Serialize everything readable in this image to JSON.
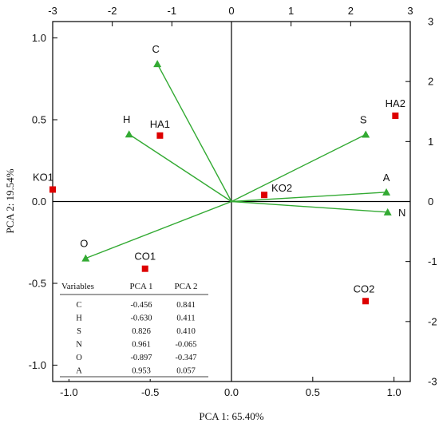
{
  "chart_data": {
    "type": "scatter",
    "xlabel": "PCA 1: 65.40%",
    "ylabel": "PCA 2: 19.54%",
    "xlim": [
      -1.1,
      1.1
    ],
    "ylim": [
      -1.1,
      1.1
    ],
    "secondary_xlim": [
      -3,
      3
    ],
    "secondary_ylim": [
      -3,
      3
    ],
    "x_ticks": [
      "-1.0",
      "-0.5",
      "0.0",
      "0.5",
      "1.0"
    ],
    "y_ticks": [
      "1.0",
      "0.5",
      "0.0",
      "-0.5",
      "-1.0"
    ],
    "top_ticks": [
      "-3",
      "-2",
      "-1",
      "0",
      "1",
      "2",
      "3"
    ],
    "right_ticks": [
      "3",
      "2",
      "1",
      "0",
      "-1",
      "-2",
      "-3"
    ],
    "grid": false,
    "variables": {
      "color": "#33aa33",
      "marker": "triangle",
      "points": [
        {
          "name": "C",
          "x": -0.456,
          "y": 0.841
        },
        {
          "name": "H",
          "x": -0.63,
          "y": 0.411
        },
        {
          "name": "S",
          "x": 0.826,
          "y": 0.41
        },
        {
          "name": "N",
          "x": 0.961,
          "y": -0.065
        },
        {
          "name": "O",
          "x": -0.897,
          "y": -0.347
        },
        {
          "name": "A",
          "x": 0.953,
          "y": 0.057
        }
      ]
    },
    "samples": {
      "color": "#dd0000",
      "marker": "square",
      "points": [
        {
          "name": "KO1",
          "x": -3.0,
          "y": 0.2
        },
        {
          "name": "HA1",
          "x": -1.2,
          "y": 1.1
        },
        {
          "name": "HA2",
          "x": 2.75,
          "y": 1.43
        },
        {
          "name": "KO2",
          "x": 0.55,
          "y": 0.11
        },
        {
          "name": "CO1",
          "x": -1.45,
          "y": -1.12
        },
        {
          "name": "CO2",
          "x": 2.25,
          "y": -1.66
        }
      ]
    },
    "table": {
      "headers": [
        "Variables",
        "PCA 1",
        "PCA 2"
      ],
      "rows": [
        [
          "C",
          "-0.456",
          "0.841"
        ],
        [
          "H",
          "-0.630",
          "0.411"
        ],
        [
          "S",
          "0.826",
          "0.410"
        ],
        [
          "N",
          "0.961",
          "-0.065"
        ],
        [
          "O",
          "-0.897",
          "-0.347"
        ],
        [
          "A",
          "0.953",
          "0.057"
        ]
      ]
    }
  }
}
